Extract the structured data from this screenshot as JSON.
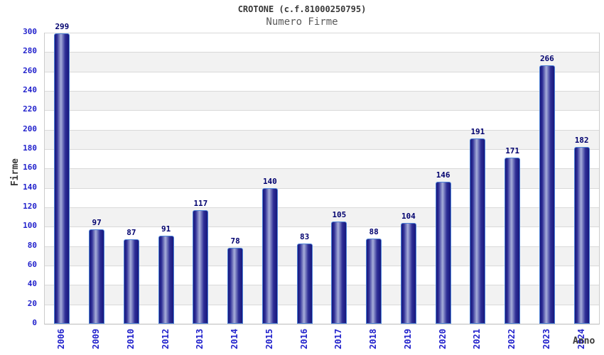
{
  "title": "CROTONE (c.f.81000250795)",
  "subtitle": "Numero Firme",
  "chart_data": {
    "type": "bar",
    "title": "CROTONE (c.f.81000250795)",
    "subtitle": "Numero Firme",
    "xlabel": "Anno",
    "ylabel": "Firme",
    "categories": [
      "2006",
      "2009",
      "2010",
      "2012",
      "2013",
      "2014",
      "2015",
      "2016",
      "2017",
      "2018",
      "2019",
      "2020",
      "2021",
      "2022",
      "2023",
      "2024"
    ],
    "values": [
      299,
      97,
      87,
      91,
      117,
      78,
      140,
      83,
      105,
      88,
      104,
      146,
      191,
      171,
      266,
      182
    ],
    "ylim": [
      0,
      300
    ],
    "ytick_step": 20,
    "grid": true,
    "legend_position": "none",
    "colors": {
      "tick_label": "#2222cc",
      "value_label": "#00006e",
      "bar_border": "#4d82d6",
      "bar_dark": "#17177c",
      "bar_mid": "#2e2e96",
      "bar_light": "#a7aeda",
      "band_alt": "#f2f2f2",
      "band_main": "#ffffff",
      "gridline": "#d9d9d9",
      "title_color": "#383838",
      "subtitle_color": "#5a5a5a",
      "axis_title_color": "#3a3a3a"
    }
  }
}
